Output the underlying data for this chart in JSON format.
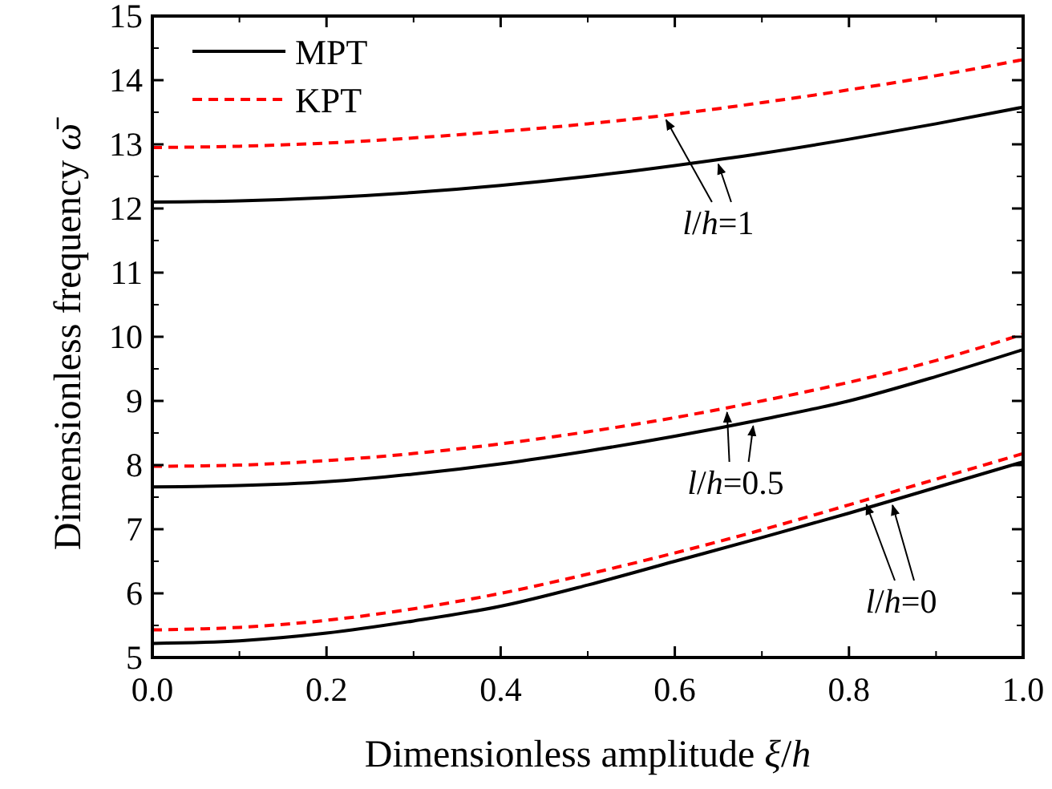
{
  "chart_data": {
    "type": "line",
    "xlabel": "Dimensionless amplitude ξ/h",
    "ylabel": "Dimensionless frequency ω̄",
    "x": [
      0,
      0.1,
      0.2,
      0.3,
      0.4,
      0.5,
      0.6,
      0.7,
      0.8,
      0.9,
      1.0
    ],
    "series": [
      {
        "name": "MPT",
        "color": "#000000",
        "line_style": "solid",
        "values": [
          12.1,
          12.12,
          12.17,
          12.25,
          12.36,
          12.5,
          12.67,
          12.86,
          13.08,
          13.32,
          13.58
        ]
      },
      {
        "name": "KPT",
        "color": "#ff0000",
        "line_style": "dashed",
        "values": [
          12.95,
          12.97,
          13.02,
          13.1,
          13.2,
          13.32,
          13.47,
          13.65,
          13.85,
          14.07,
          14.32
        ]
      },
      {
        "color": "#000000",
        "line_style": "solid",
        "values": [
          7.66,
          7.68,
          7.74,
          7.86,
          8.02,
          8.22,
          8.45,
          8.71,
          9.0,
          9.38,
          9.8
        ]
      },
      {
        "color": "#ff0000",
        "line_style": "dashed",
        "values": [
          7.98,
          8.0,
          8.07,
          8.18,
          8.33,
          8.52,
          8.74,
          9.0,
          9.29,
          9.63,
          10.04
        ]
      },
      {
        "color": "#000000",
        "line_style": "solid",
        "values": [
          5.22,
          5.26,
          5.38,
          5.57,
          5.8,
          6.13,
          6.5,
          6.87,
          7.25,
          7.65,
          8.05
        ]
      },
      {
        "color": "#ff0000",
        "line_style": "dashed",
        "values": [
          5.43,
          5.47,
          5.58,
          5.76,
          6.0,
          6.3,
          6.63,
          6.99,
          7.38,
          7.78,
          8.18
        ]
      }
    ],
    "xlim": [
      0,
      1
    ],
    "xticks": [
      {
        "value": 0,
        "label": "0.0"
      },
      0.2,
      0.4,
      0.6,
      0.8,
      {
        "value": 1,
        "label": "1.0"
      }
    ],
    "ylim": [
      5,
      15
    ],
    "yticks": [
      5,
      6,
      7,
      8,
      9,
      10,
      11,
      12,
      13,
      14,
      15
    ],
    "legend": "top left",
    "grid": false,
    "annotations": [
      {
        "text": "l/h=1",
        "x": 0.65,
        "y": 12.75
      },
      {
        "text": "l/h=0.5",
        "x": 0.67,
        "y": 8.7
      },
      {
        "text": "l/h=0",
        "x": 0.84,
        "y": 7.3
      }
    ]
  }
}
